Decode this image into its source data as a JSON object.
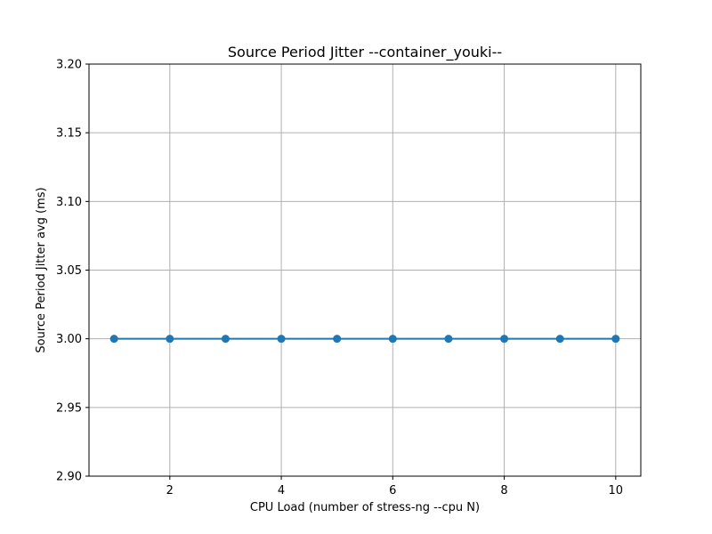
{
  "chart_data": {
    "type": "line",
    "title": "Source Period Jitter --container_youki--",
    "xlabel": "CPU Load (number of stress-ng --cpu N)",
    "ylabel": "Source Period Jitter avg (ms)",
    "x": [
      1,
      2,
      3,
      4,
      5,
      6,
      7,
      8,
      9,
      10
    ],
    "series": [
      {
        "values": [
          3.0,
          3.0,
          3.0,
          3.0,
          3.0,
          3.0,
          3.0,
          3.0,
          3.0,
          3.0
        ],
        "color": "#1f77b4",
        "marker": "circle"
      }
    ],
    "xlim": [
      0.55,
      10.45
    ],
    "ylim": [
      2.9,
      3.2
    ],
    "xticks": [
      "2",
      "4",
      "6",
      "8",
      "10"
    ],
    "yticks": [
      "2.90",
      "2.95",
      "3.00",
      "3.05",
      "3.10",
      "3.15",
      "3.20"
    ],
    "grid": true,
    "legend": "none"
  }
}
